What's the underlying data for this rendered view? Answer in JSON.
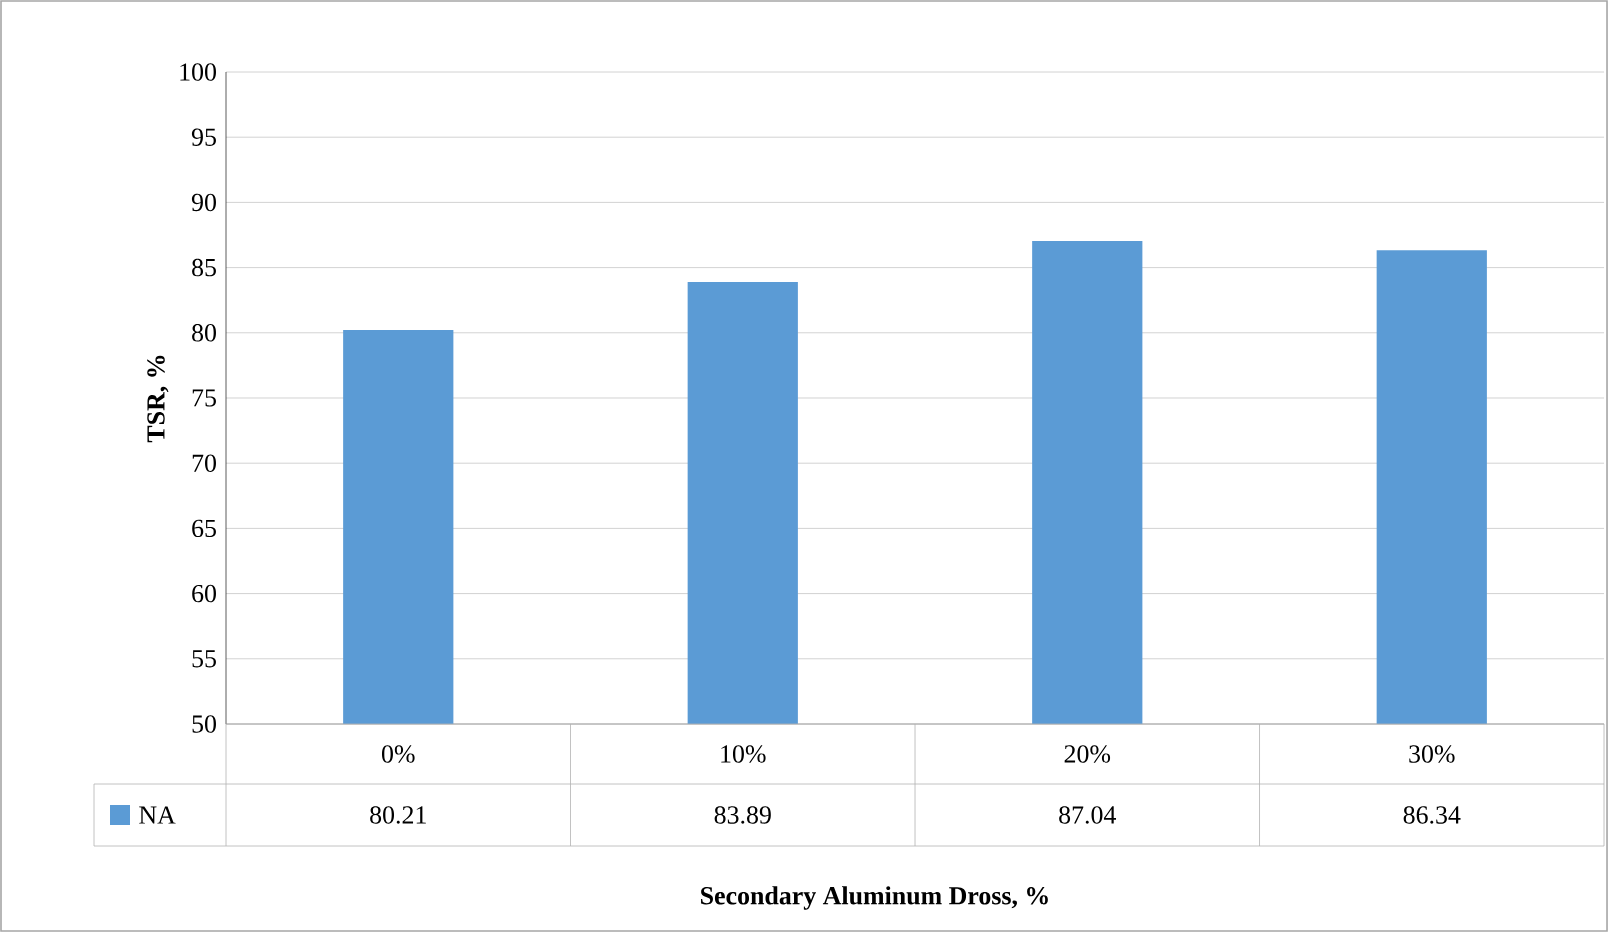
{
  "chart_data": {
    "type": "bar",
    "xlabel": "Secondary Aluminum Dross, %",
    "ylabel": "TSR, %",
    "categories": [
      "0%",
      "10%",
      "20%",
      "30%"
    ],
    "series": [
      {
        "name": "NA",
        "color": "#5b9bd5",
        "values": [
          80.21,
          83.89,
          87.04,
          86.34
        ]
      }
    ],
    "ylim": [
      50,
      100
    ],
    "yticks": [
      50,
      55,
      60,
      65,
      70,
      75,
      80,
      85,
      90,
      95,
      100
    ],
    "grid": "y",
    "legend": "bottom",
    "data_labels": true
  }
}
